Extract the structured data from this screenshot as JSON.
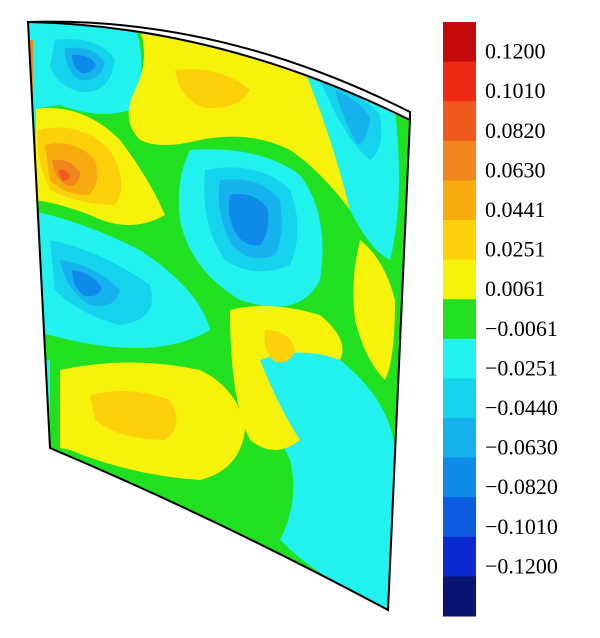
{
  "figure": {
    "description_color_levels": [
      {
        "value": "0.1200",
        "color": "#c40a0a"
      },
      {
        "value": "0.1010",
        "color": "#ee2a13"
      },
      {
        "value": "0.0820",
        "color": "#ef5a1c"
      },
      {
        "value": "0.0630",
        "color": "#f0861c"
      },
      {
        "value": "0.0441",
        "color": "#f7ab0e"
      },
      {
        "value": "0.0251",
        "color": "#fcd10a"
      },
      {
        "value": "0.0061",
        "color": "#f7f20a"
      },
      {
        "value": "−0.0061",
        "color": "#20e020"
      },
      {
        "value": "−0.0251",
        "color": "#22f2ee"
      },
      {
        "value": "−0.0440",
        "color": "#15d3ec"
      },
      {
        "value": "−0.0630",
        "color": "#16b2ee"
      },
      {
        "value": "−0.0820",
        "color": "#0e8bea"
      },
      {
        "value": "−0.1010",
        "color": "#0c5ce0"
      },
      {
        "value": "−0.1200",
        "color": "#0a2ad0"
      },
      {
        "value": "",
        "color": "#0a1470"
      }
    ]
  }
}
